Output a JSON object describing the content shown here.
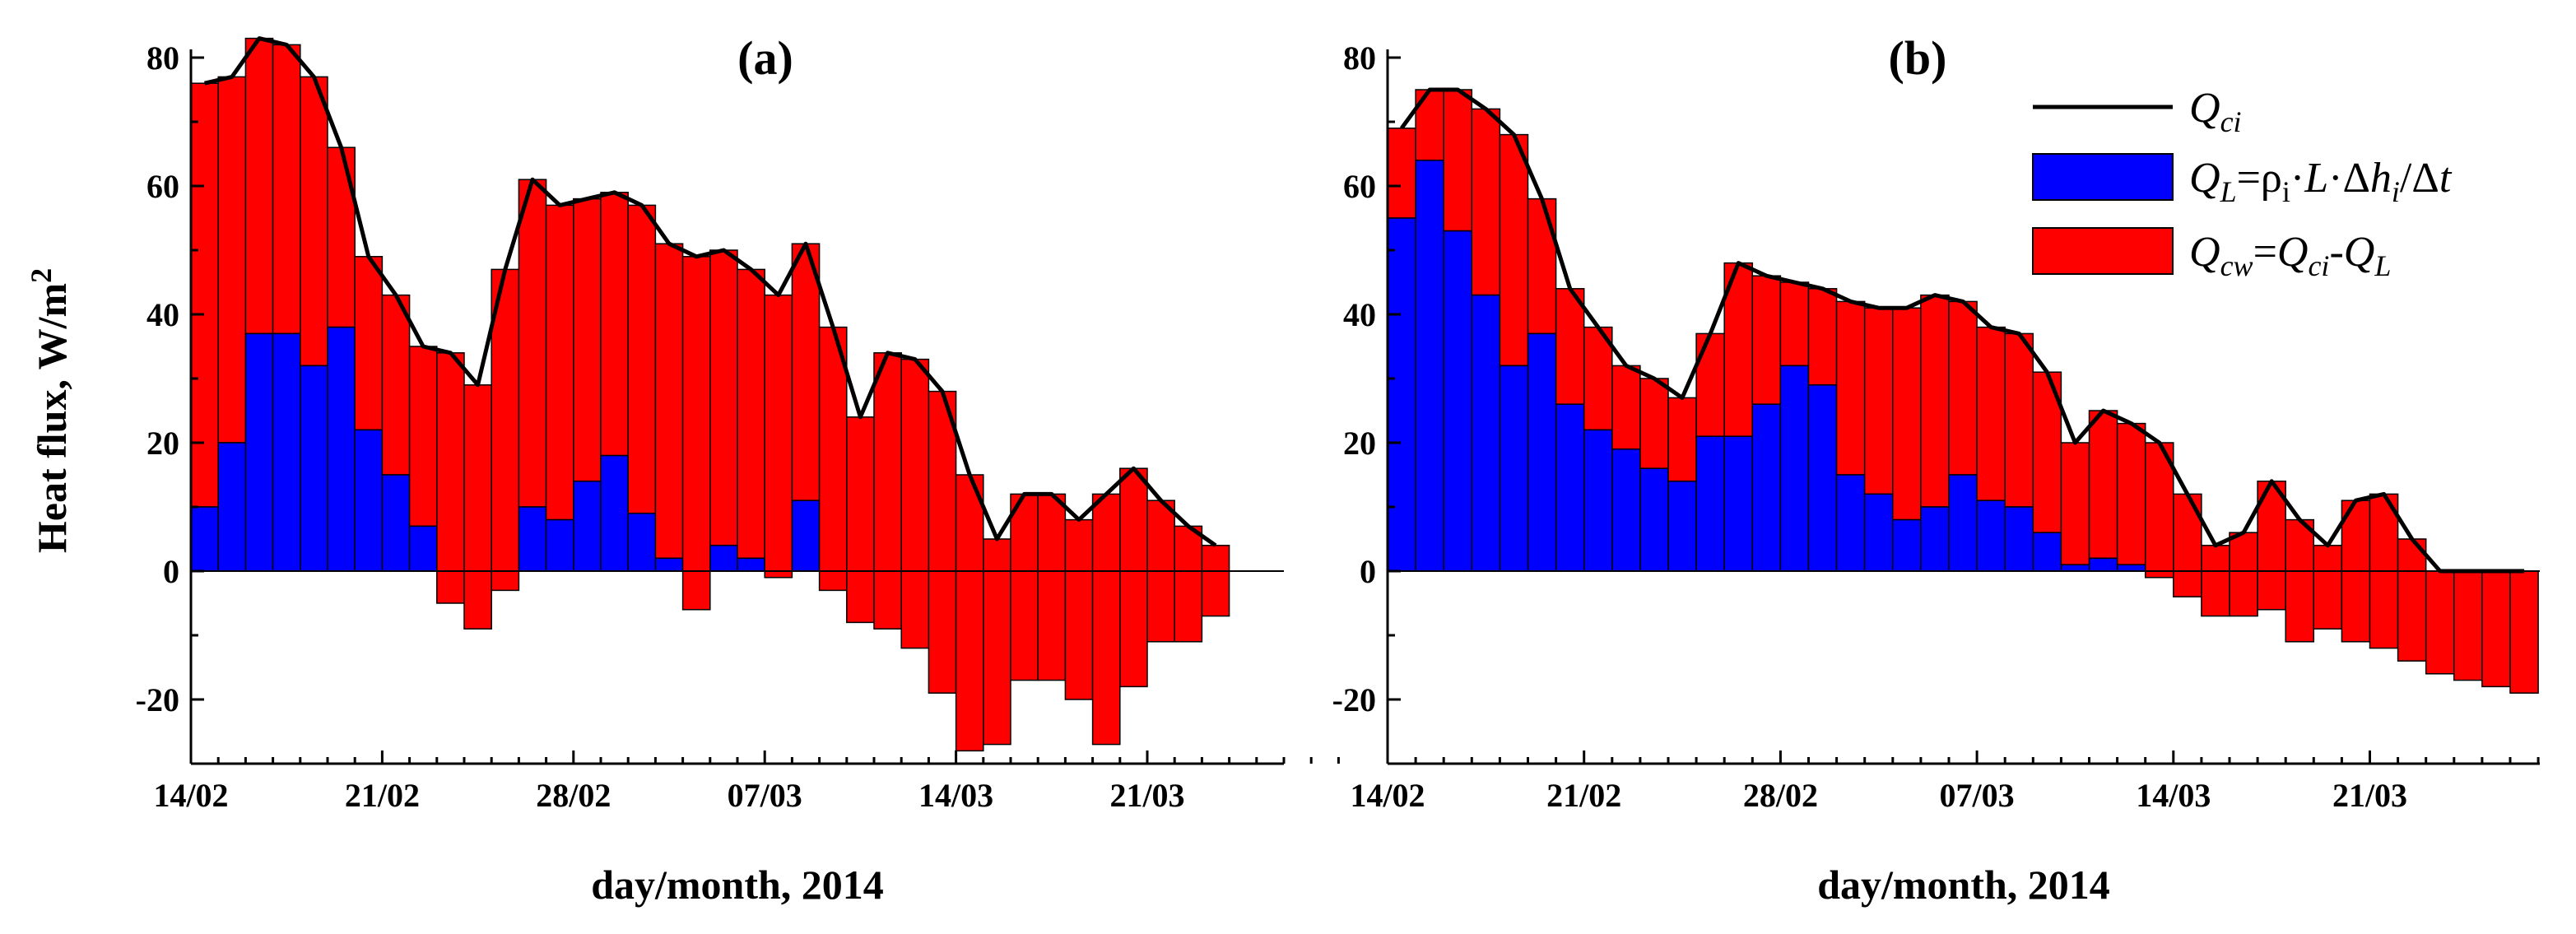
{
  "colors": {
    "ql": "#0000ff",
    "qcw": "#ff0000",
    "qci": "#000000"
  },
  "legend": {
    "items": [
      {
        "key": "qci",
        "main": "Q",
        "sub": "ci",
        "rest": ""
      },
      {
        "key": "ql",
        "main": "Q",
        "sub": "L",
        "rest": "=ρi·L·Δhi/Δt"
      },
      {
        "key": "qcw",
        "main": "Q",
        "sub": "cw",
        "rest": "=Qci-QL"
      }
    ]
  },
  "chart_data": [
    {
      "type": "bar",
      "panel_label": "(a)",
      "ylabel": "Heat flux, W/m2",
      "xlabel": "day/month, 2014",
      "ylim": [
        -30,
        80
      ],
      "yticks": [
        -20,
        0,
        20,
        40,
        60,
        80
      ],
      "xticks": [
        "14/02",
        "21/02",
        "28/02",
        "07/03",
        "14/03",
        "21/03"
      ],
      "day_offsets_of_ticks": [
        0,
        7,
        14,
        21,
        28,
        35
      ],
      "x_days": 42,
      "series": [
        {
          "name": "Qci",
          "values": [
            76,
            77,
            83,
            82,
            77,
            66,
            49,
            43,
            35,
            34,
            29,
            47,
            61,
            57,
            58,
            59,
            57,
            51,
            49,
            50,
            47,
            43,
            51,
            38,
            24,
            34,
            33,
            28,
            15,
            5,
            12,
            12,
            8,
            12,
            16,
            11,
            7,
            4
          ]
        },
        {
          "name": "QL=ρi·L·Δhi/Δt",
          "values": [
            10,
            20,
            37,
            37,
            32,
            38,
            22,
            15,
            7,
            -5,
            -9,
            -3,
            10,
            8,
            14,
            18,
            9,
            2,
            -6,
            4,
            2,
            -1,
            11,
            -3,
            -8,
            -9,
            -12,
            -19,
            -28,
            -27,
            -17,
            -17,
            -20,
            -27,
            -18,
            -11,
            -11,
            -7
          ]
        }
      ]
    },
    {
      "type": "bar",
      "panel_label": "(b)",
      "ylabel": "",
      "xlabel": "day/month, 2014",
      "ylim": [
        -30,
        80
      ],
      "yticks": [
        -20,
        0,
        20,
        40,
        60,
        80
      ],
      "xticks": [
        "14/02",
        "21/02",
        "28/02",
        "07/03",
        "14/03",
        "21/03"
      ],
      "day_offsets_of_ticks": [
        0,
        7,
        14,
        21,
        28,
        35
      ],
      "x_days": 41,
      "series": [
        {
          "name": "Qci",
          "values": [
            69,
            75,
            75,
            72,
            68,
            58,
            44,
            38,
            32,
            30,
            27,
            37,
            48,
            46,
            45,
            44,
            42,
            41,
            41,
            43,
            42,
            38,
            37,
            31,
            20,
            25,
            23,
            20,
            12,
            4,
            6,
            14,
            8,
            4,
            11,
            12,
            5,
            0,
            0,
            0,
            0
          ]
        },
        {
          "name": "QL=ρi·L·Δhi/Δt",
          "values": [
            55,
            64,
            53,
            43,
            32,
            37,
            26,
            22,
            19,
            16,
            14,
            21,
            21,
            26,
            32,
            29,
            15,
            12,
            8,
            10,
            15,
            11,
            10,
            6,
            1,
            2,
            1,
            -1,
            -4,
            -7,
            -7,
            -6,
            -11,
            -9,
            -11,
            -12,
            -14,
            -16,
            -17,
            -18,
            -19
          ]
        }
      ]
    }
  ]
}
